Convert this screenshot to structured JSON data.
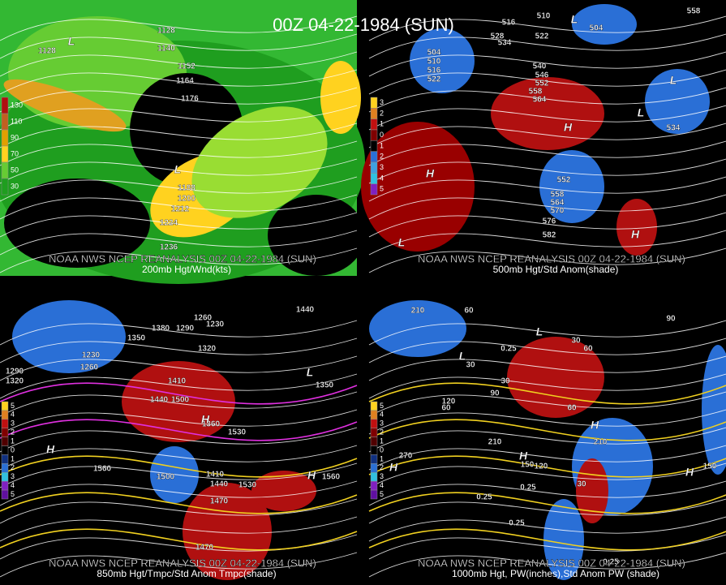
{
  "title": "00Z 04-22-1984 (SUN)",
  "panels": [
    {
      "credit": "NOAA NWS NCEP REANALYSIS 00Z 04-22-1984 (SUN)",
      "caption": "200mb Hgt/Wnd(kts)",
      "legend": [
        "130",
        "110",
        "90",
        "70",
        "50",
        "30"
      ],
      "labels": [
        "1128",
        "1140",
        "1152",
        "1164",
        "1176",
        "1128",
        "1188",
        "1200",
        "1212",
        "1224",
        "1236",
        "L",
        "L"
      ]
    },
    {
      "credit": "NOAA NWS NCEP REANALYSIS 00Z 04-22-1984 (SUN)",
      "caption": "500mb Hgt/Std Anom(shade)",
      "legend": [
        "3",
        "2",
        "1",
        "0",
        "1",
        "2",
        "3",
        "4",
        "5"
      ],
      "labels": [
        "504",
        "510",
        "516",
        "522",
        "528",
        "534",
        "516",
        "522",
        "510",
        "504",
        "540",
        "546",
        "552",
        "558",
        "564",
        "552",
        "558",
        "564",
        "570",
        "576",
        "582",
        "534",
        "558",
        "H",
        "H",
        "L",
        "L",
        "L",
        "L",
        "H"
      ]
    },
    {
      "credit": "NOAA NWS NCEP REANALYSIS 00Z 04-22-1984 (SUN)",
      "caption": "850mb Hgt/Tmpc/Std Anom Tmpc(shade)",
      "legend": [
        "5",
        "4",
        "3",
        "2",
        "1",
        "0",
        "1",
        "2",
        "3",
        "4",
        "5"
      ],
      "labels": [
        "1380",
        "1290",
        "1260",
        "1230",
        "1440",
        "1350",
        "1320",
        "1230",
        "1260",
        "1290",
        "1320",
        "1410",
        "1440",
        "1500",
        "1360",
        "1530",
        "1560",
        "1500",
        "1410",
        "1440",
        "1530",
        "1560",
        "1470",
        "1470",
        "1350",
        "H",
        "H",
        "H",
        "L"
      ]
    },
    {
      "credit": "NOAA NWS NCEP REANALYSIS 00Z 04-22-1984 (SUN)",
      "caption": "1000mb Hgt, PW(inches),Std Anom PW (shade)",
      "legend": [
        "5",
        "4",
        "3",
        "2",
        "1",
        "0",
        "1",
        "2",
        "3",
        "4",
        "5"
      ],
      "labels": [
        "210",
        "60",
        "30",
        "60",
        "90",
        "30",
        "120",
        "60",
        "30",
        "90",
        "60",
        "210",
        "210",
        "270",
        "150",
        "120",
        "30",
        "150",
        "0.25",
        "0.25",
        "0.25",
        "0.25",
        "0.25",
        "L",
        "L",
        "H",
        "H",
        "H",
        "H"
      ]
    }
  ]
}
